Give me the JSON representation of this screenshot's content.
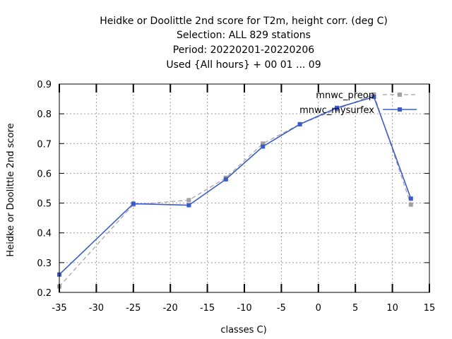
{
  "chart_data": {
    "type": "line",
    "title_lines": [
      "Heidke or Doolittle 2nd score  for T2m, height corr. (deg C)",
      "Selection: ALL    829 stations",
      "Period: 20220201-20220206",
      "Used {All hours} + 00 01 ... 09"
    ],
    "xlabel": "classes C)",
    "ylabel": "Heidke or Doolittle 2nd score",
    "xlim": [
      -35,
      15
    ],
    "ylim": [
      0.2,
      0.9
    ],
    "x_ticks": [
      -35,
      -30,
      -25,
      -20,
      -15,
      -10,
      -5,
      0,
      5,
      10,
      15
    ],
    "y_ticks": [
      0.2,
      0.3,
      0.4,
      0.5,
      0.6,
      0.7,
      0.8,
      0.9
    ],
    "grid": true,
    "legend_position": "top-right",
    "series": [
      {
        "name": "mnwc_preop",
        "color": "#a0a0a0",
        "dashed": true,
        "x": [
          -35,
          -25,
          -17.5,
          -12.5,
          -7.5,
          -2.5,
          2.5,
          7.5,
          12.5
        ],
        "y": [
          0.22,
          0.495,
          0.51,
          0.585,
          0.7,
          0.765,
          0.815,
          0.865,
          0.495
        ]
      },
      {
        "name": "mnwc_mysurfex",
        "color": "#3b5bcc",
        "dashed": false,
        "x": [
          -35,
          -25,
          -17.5,
          -12.5,
          -7.5,
          -2.5,
          2.5,
          7.5,
          12.5
        ],
        "y": [
          0.26,
          0.498,
          0.493,
          0.58,
          0.69,
          0.765,
          0.82,
          0.857,
          0.515
        ]
      }
    ]
  }
}
